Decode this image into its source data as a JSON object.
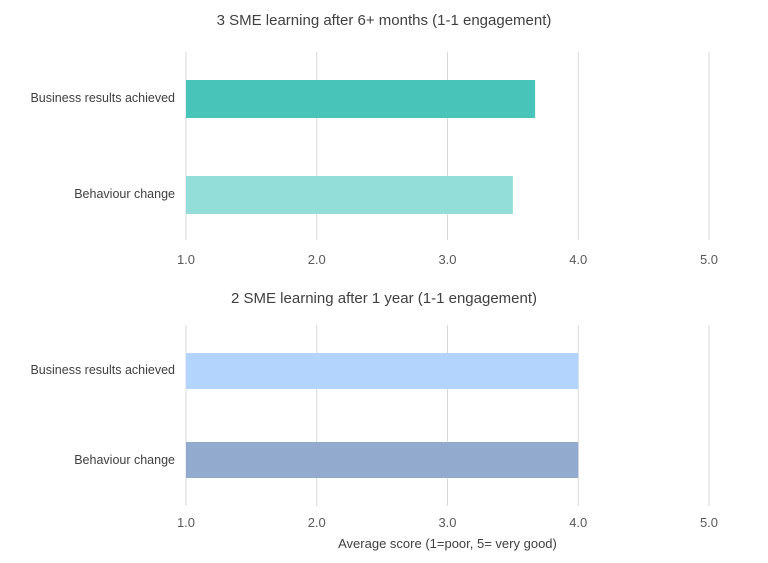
{
  "chart_data": [
    {
      "type": "bar",
      "orientation": "horizontal",
      "title": "3 SME learning after 6+ months (1-1 engagement)",
      "categories": [
        "Business results achieved",
        "Behaviour change"
      ],
      "values": [
        3.67,
        3.5
      ],
      "colors": [
        "#48C4B8",
        "#93DED8"
      ],
      "xlim": [
        1.0,
        5.0
      ],
      "xticks": [
        "1.0",
        "2.0",
        "3.0",
        "4.0",
        "5.0"
      ],
      "xlabel": "",
      "grid": true
    },
    {
      "type": "bar",
      "orientation": "horizontal",
      "title": "2 SME learning after 1 year (1-1 engagement)",
      "categories": [
        "Business results achieved",
        "Behaviour change"
      ],
      "values": [
        4.0,
        4.0
      ],
      "colors": [
        "#B3D4FD",
        "#93AACF"
      ],
      "xlim": [
        1.0,
        5.0
      ],
      "xticks": [
        "1.0",
        "2.0",
        "3.0",
        "4.0",
        "5.0"
      ],
      "xlabel": "Average score (1=poor, 5= very good)",
      "grid": true
    }
  ]
}
